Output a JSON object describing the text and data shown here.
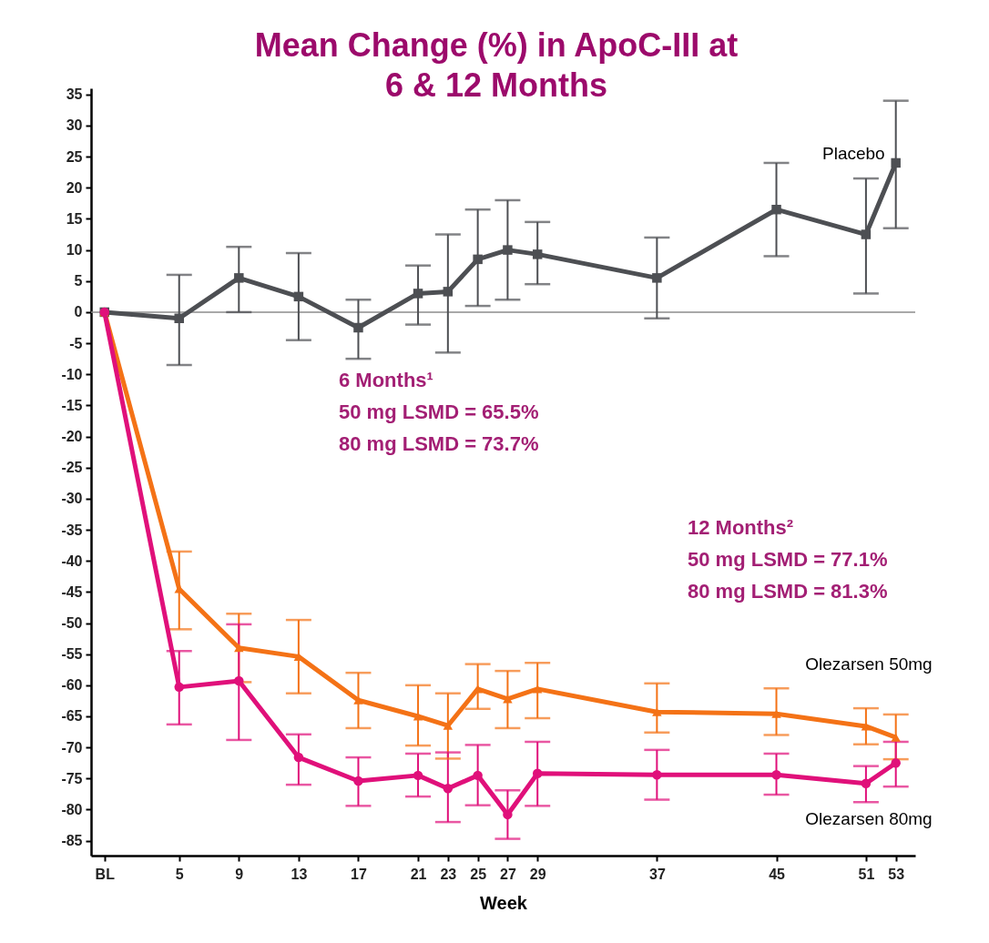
{
  "chart_data": {
    "type": "line",
    "title": "Mean Change (%) in ApoC-III at 6 & 12 Months",
    "xlabel": "Week",
    "x": [
      0,
      5,
      9,
      13,
      17,
      21,
      23,
      25,
      27,
      29,
      37,
      45,
      51,
      53
    ],
    "xlim": [
      -0.9,
      54.3
    ],
    "xticks": [
      {
        "value": 0,
        "label": "BL"
      },
      5,
      9,
      13,
      17,
      21,
      23,
      25,
      27,
      29,
      37,
      45,
      51,
      53
    ],
    "ylim": [
      -87.4,
      36
    ],
    "yticks": [
      35,
      30,
      25,
      20,
      15,
      10,
      5,
      0,
      -5,
      -10,
      -15,
      -20,
      -25,
      -30,
      -35,
      -40,
      -45,
      -50,
      -55,
      -60,
      -65,
      -70,
      -75,
      -80,
      -85
    ],
    "series": [
      {
        "name": "Placebo",
        "color": "#4d4f53",
        "marker": "square",
        "values": [
          0,
          -1,
          5.5,
          2.5,
          -2.5,
          3,
          3.3,
          8.5,
          10,
          9.3,
          5.5,
          16.5,
          12.5,
          24
        ],
        "errors": [
          null,
          [
            -8.5,
            6
          ],
          [
            0,
            10.5
          ],
          [
            -4.5,
            9.5
          ],
          [
            -7.5,
            2
          ],
          [
            -2,
            7.5
          ],
          [
            -6.5,
            12.5
          ],
          [
            1,
            16.5
          ],
          [
            2,
            18
          ],
          [
            4.5,
            14.5
          ],
          [
            -1,
            12
          ],
          [
            9,
            24
          ],
          [
            3,
            21.5
          ],
          [
            13.5,
            34
          ]
        ]
      },
      {
        "name": "Olezarsen 50mg",
        "color": "#f47216",
        "marker": "triangle",
        "values": [
          0,
          -44.5,
          -54,
          -55.4,
          -62.4,
          -65,
          -66.5,
          -60.6,
          -62.2,
          -60.6,
          -64.3,
          -64.6,
          -66.6,
          -68.4
        ],
        "errors": [
          null,
          [
            -51,
            -38.5
          ],
          [
            -59.5,
            -48.5
          ],
          [
            -61.3,
            -49.5
          ],
          [
            -66.9,
            -58
          ],
          [
            -69.7,
            -60
          ],
          [
            -71.8,
            -61.3
          ],
          [
            -63.8,
            -56.6
          ],
          [
            -66.9,
            -57.7
          ],
          [
            -65.3,
            -56.4
          ],
          [
            -67.6,
            -59.7
          ],
          [
            -68,
            -60.5
          ],
          [
            -69.5,
            -63.7
          ],
          [
            -71.9,
            -64.7
          ]
        ]
      },
      {
        "name": "Olezarsen 80mg",
        "color": "#e0107a",
        "marker": "circle",
        "values": [
          0,
          -60.3,
          -59.3,
          -71.6,
          -75.4,
          -74.5,
          -76.6,
          -74.5,
          -80.8,
          -74.2,
          -74.4,
          -74.4,
          -75.8,
          -72.5
        ],
        "errors": [
          null,
          [
            -66.3,
            -54.5
          ],
          [
            -68.8,
            -50.2
          ],
          [
            -76,
            -67.9
          ],
          [
            -79.4,
            -71.6
          ],
          [
            -77.9,
            -71
          ],
          [
            -82,
            -70.8
          ],
          [
            -79.3,
            -69.6
          ],
          [
            -84.7,
            -76.9
          ],
          [
            -79.4,
            -69.1
          ],
          [
            -78.4,
            -70.4
          ],
          [
            -77.6,
            -71
          ],
          [
            -78.8,
            -73
          ],
          [
            -76.3,
            -69.1
          ]
        ]
      }
    ],
    "ref_lines": [
      {
        "axis": "y",
        "value": 0,
        "label": null,
        "color": "#8c8c8c"
      }
    ],
    "annotations": [
      "6 Months¹",
      "50 mg LSMD = 65.5%",
      "80 mg LSMD = 73.7%",
      "12 Months²",
      "50 mg LSMD = 77.1%",
      "80 mg LSMD = 81.3%"
    ]
  }
}
